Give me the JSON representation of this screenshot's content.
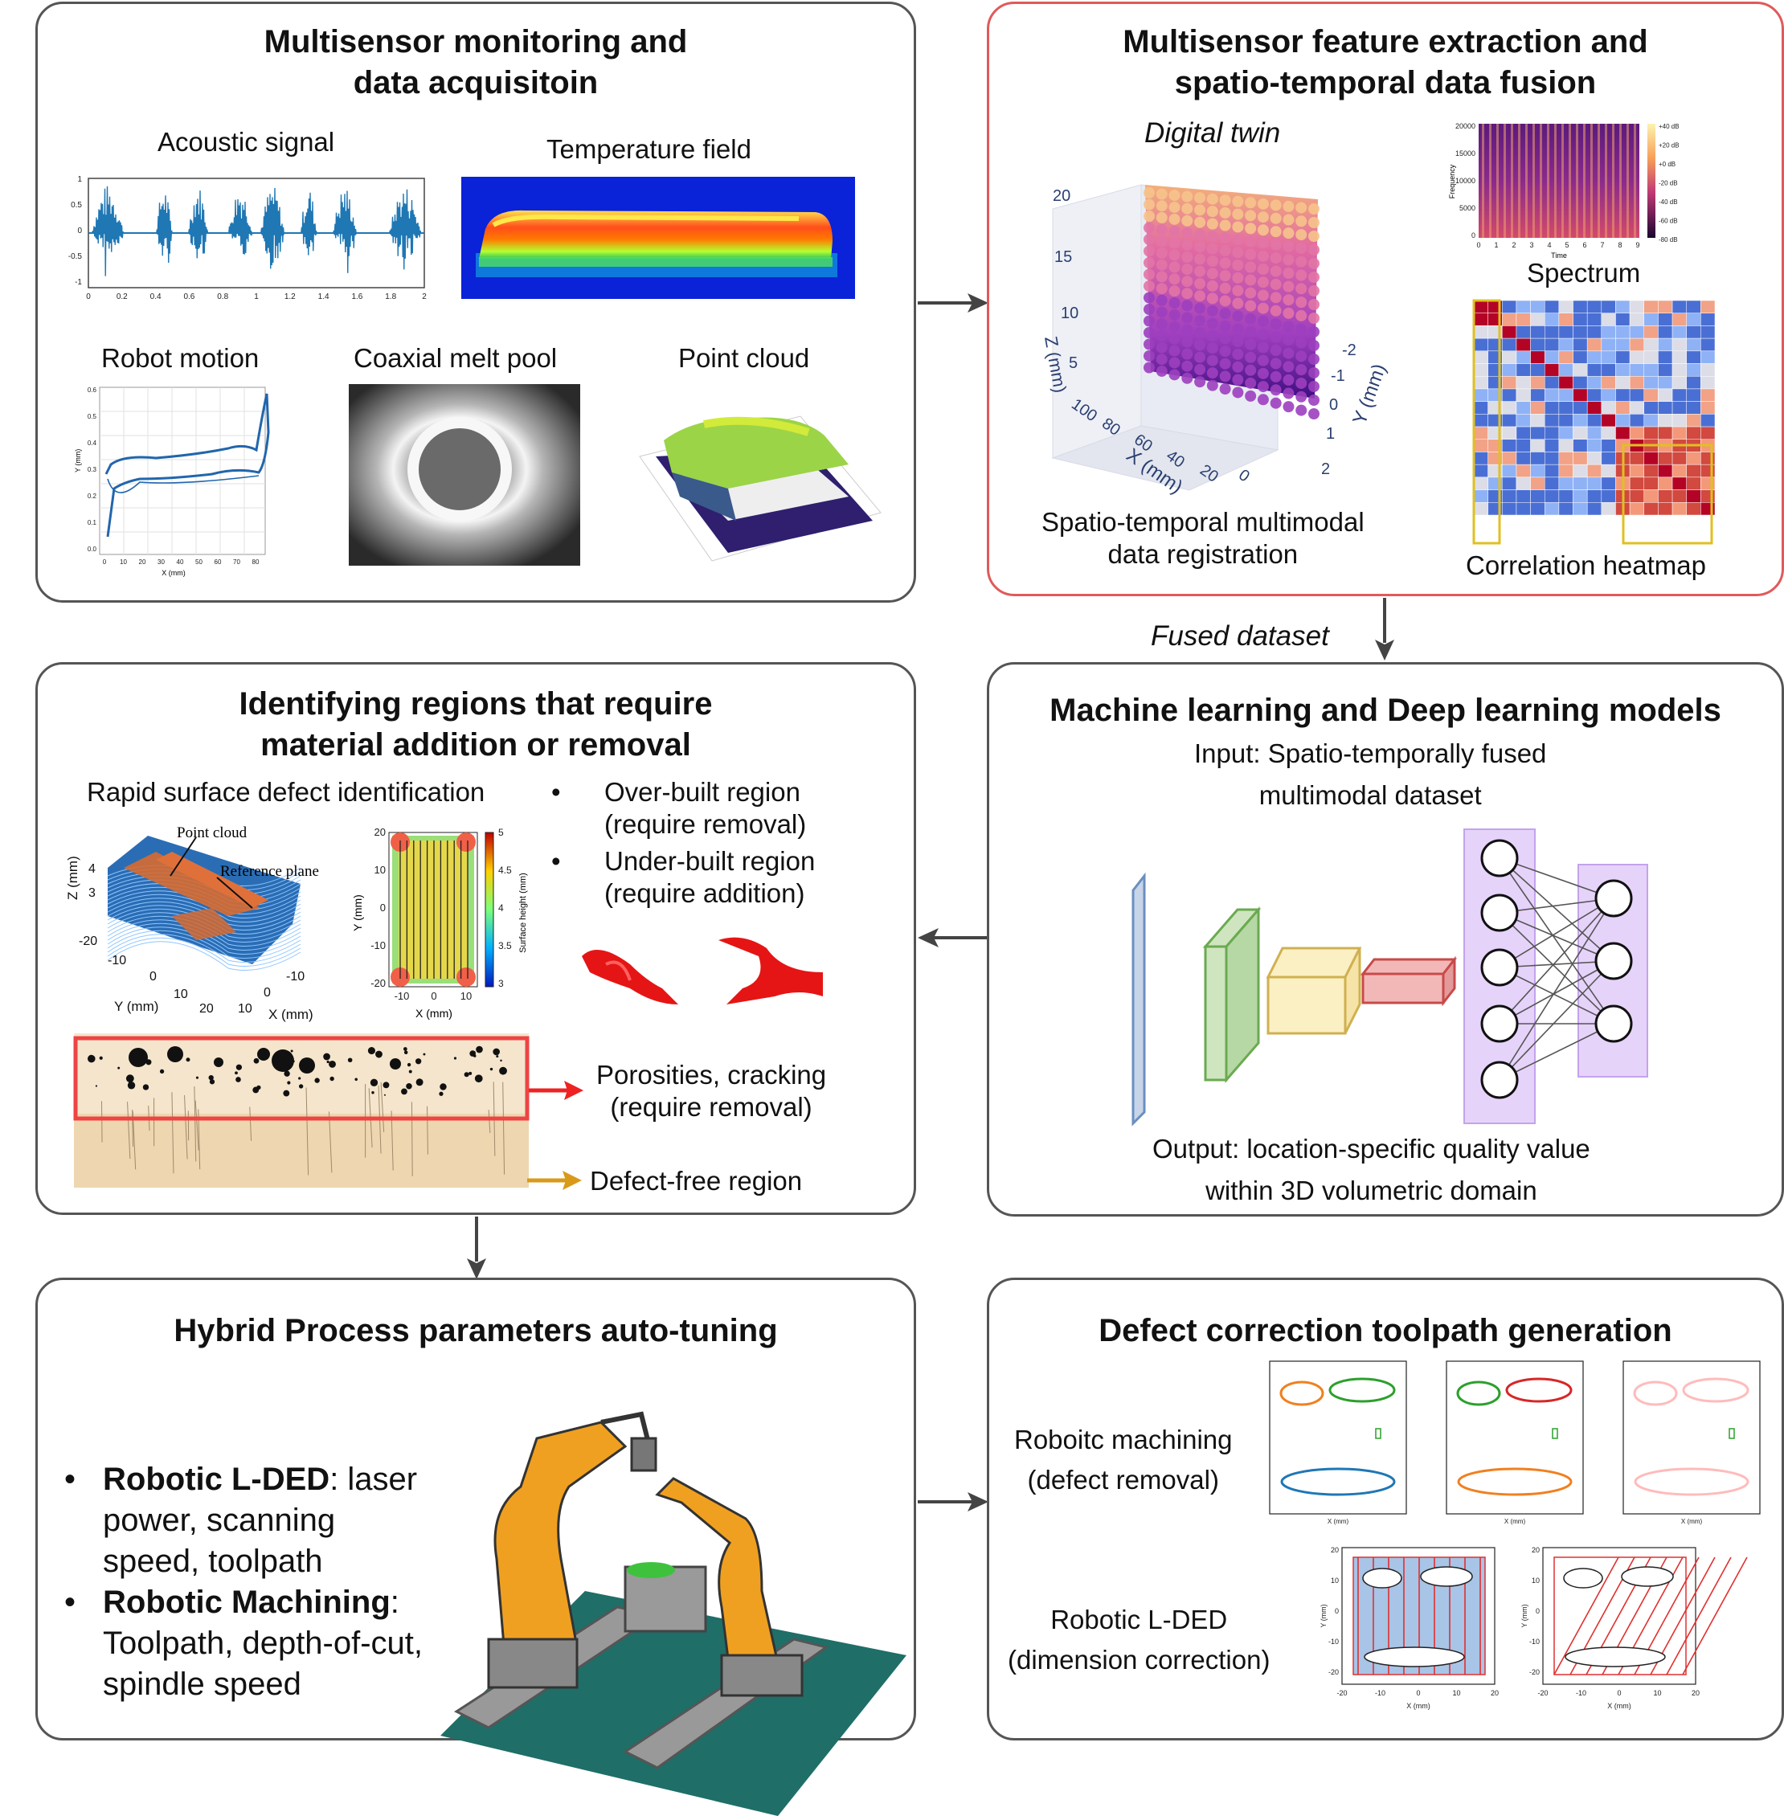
{
  "colors": {
    "panel_border": "#555555",
    "highlight_border": "#e05a5a",
    "arrow": "#444444",
    "acoustic": "#1f77b4",
    "porosity_arrow": "#ee2222",
    "defect_free_arrow": "#d99a1a",
    "nn_layer": "#e6d3fa",
    "robot": "#f0a020",
    "table": "#1f6e68"
  },
  "panels": {
    "monitoring": {
      "title_line1": "Multisensor monitoring and",
      "title_line2": "data acquisitoin",
      "acoustic": {
        "label": "Acoustic signal",
        "yticks": [
          "1",
          "0.5",
          "0",
          "-0.5",
          "-1"
        ],
        "xticks": [
          "0",
          "0.2",
          "0.4",
          "0.6",
          "0.8",
          "1",
          "1.2",
          "1.4",
          "1.6",
          "1.8",
          "2"
        ]
      },
      "temperature": {
        "label": "Temperature field"
      },
      "robot": {
        "label": "Robot motion",
        "ylabel": "Y (mm)",
        "xlabel": "X (mm)",
        "yticks": [
          "0.6",
          "0.5",
          "0.4",
          "0.3",
          "0.2",
          "0.1",
          "0.0"
        ],
        "xticks": [
          "0",
          "10",
          "20",
          "30",
          "40",
          "50",
          "60",
          "70",
          "80"
        ]
      },
      "meltpool": {
        "label": "Coaxial melt pool"
      },
      "pointcloud": {
        "label": "Point cloud"
      }
    },
    "fusion": {
      "title_line1": "Multisensor feature extraction and",
      "title_line2": "spatio-temporal data fusion",
      "twin_label": "Digital twin",
      "twin_axes": {
        "z_label": "Z (mm)",
        "x_label": "X (mm)",
        "y_label": "Y (mm)",
        "z_ticks": [
          "20",
          "15",
          "10",
          "5"
        ],
        "x_ticks": [
          "100",
          "80",
          "60",
          "40",
          "20",
          "0"
        ],
        "y_ticks": [
          "-2",
          "-1",
          "0",
          "1",
          "2"
        ]
      },
      "registration_line1": "Spatio-temporal multimodal",
      "registration_line2": "data registration",
      "spectrum": {
        "label": "Spectrum",
        "ylabel": "Frequency",
        "xlabel": "Time",
        "yticks": [
          "20000",
          "15000",
          "10000",
          "5000",
          "0"
        ],
        "xticks": [
          "0",
          "1",
          "2",
          "3",
          "4",
          "5",
          "6",
          "7",
          "8",
          "9"
        ],
        "cbar": [
          "+40 dB",
          "+20 dB",
          "+0 dB",
          "-20 dB",
          "-40 dB",
          "-60 dB",
          "-80 dB"
        ]
      },
      "heatmap_label": "Correlation heatmap"
    },
    "defects": {
      "title_line1": "Identifying regions that require",
      "title_line2": "material addition or removal",
      "rapid_label": "Rapid surface defect identification",
      "pc_label": "Point cloud",
      "ref_label": "Reference plane",
      "surf_axes": {
        "z_label": "Z (mm)",
        "y_label": "Y (mm)",
        "x_label": "X (mm)",
        "z_ticks": [
          "4",
          "3",
          "-20"
        ],
        "y_ticks": [
          "-10",
          "0",
          "10",
          "20"
        ],
        "x_ticks": [
          "-10",
          "0",
          "10",
          "20"
        ]
      },
      "map_axes": {
        "ylabel": "Y (mm)",
        "xlabel": "X (mm)",
        "cbar_label": "Surface height (mm)",
        "yticks": [
          "20",
          "10",
          "0",
          "-10",
          "-20"
        ],
        "xticks": [
          "-10",
          "0",
          "10"
        ],
        "cbar": [
          "5",
          "4.5",
          "4",
          "3.5",
          "3"
        ]
      },
      "bullets": [
        {
          "line1": "Over-built region",
          "line2": "(require removal)"
        },
        {
          "line1": "Under-built region",
          "line2": "(require addition)"
        }
      ],
      "porosity_line1": "Porosities, cracking",
      "porosity_line2": "(require removal)",
      "defect_free": "Defect-free region"
    },
    "ml": {
      "title": "Machine learning and Deep learning models",
      "input_line1": "Input: Spatio-temporally fused",
      "input_line2": "multimodal dataset",
      "output_line1": "Output: location-specific quality value",
      "output_line2": "within 3D volumetric domain"
    },
    "tuning": {
      "title": "Hybrid Process parameters auto-tuning",
      "bullet1_bold": "Robotic L-DED",
      "bullet1_rest1": ": laser",
      "bullet1_rest2": "power, scanning",
      "bullet1_rest3": "speed, toolpath",
      "bullet2_bold": "Robotic Machining",
      "bullet2_rest1": ":",
      "bullet2_rest2": "Toolpath, depth-of-cut,",
      "bullet2_rest3": "spindle speed"
    },
    "toolpath": {
      "title": "Defect correction toolpath generation",
      "mach_line1": "Roboitc machining",
      "mach_line2": "(defect removal)",
      "ded_line1": "Robotic L-DED",
      "ded_line2": "(dimension correction)",
      "plot_xlabel": "X (mm)",
      "plot_ylabel": "Y (mm)",
      "plot_yticks": [
        "20",
        "10",
        "0",
        "-10",
        "-20"
      ],
      "plot_xticks": [
        "-20",
        "-10",
        "0",
        "10",
        "20"
      ]
    }
  },
  "fused_dataset": "Fused dataset"
}
